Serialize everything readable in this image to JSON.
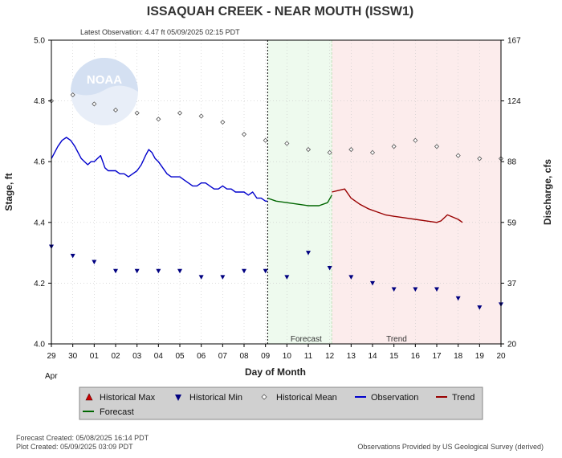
{
  "chart_data": {
    "type": "line",
    "title": "ISSAQUAH CREEK - NEAR MOUTH  (ISSW1)",
    "subtitle": "Latest Observation: 4.47 ft 05/09/2025 02:15 PDT",
    "xlabel": "Day of Month",
    "month_label": "Apr",
    "ylabel": "Stage, ft",
    "y2label": "Discharge, cfs",
    "ylim": [
      4.0,
      5.0
    ],
    "yticks": [
      "4.0",
      "4.2",
      "4.4",
      "4.6",
      "4.8",
      "5.0"
    ],
    "y2ticks": [
      "20",
      "37",
      "59",
      "88",
      "124",
      "167"
    ],
    "x_tick_labels": [
      "29",
      "30",
      "01",
      "02",
      "03",
      "04",
      "05",
      "06",
      "07",
      "08",
      "09",
      "10",
      "11",
      "12",
      "13",
      "14",
      "15",
      "16",
      "17",
      "18",
      "19",
      "20"
    ],
    "forecast_label": "Forecast",
    "trend_label": "Trend",
    "forecast_start_day": 10.1,
    "forecast_end_day": 13.1,
    "logo_text": "NOAA",
    "colors": {
      "observation": "#0000cc",
      "forecast": "#006600",
      "trend": "#990000",
      "historical_max": "#cc0000",
      "historical_min": "#000080",
      "historical_mean": "#555555",
      "forecast_zone": "#eefaee",
      "trend_zone": "#fcecec"
    },
    "series": [
      {
        "name": "Historical Min",
        "marker": "triangle-down",
        "x": [
          0,
          1,
          2,
          3,
          4,
          5,
          6,
          7,
          8,
          9,
          10,
          11,
          12,
          13,
          14,
          15,
          16,
          17,
          18,
          19,
          20,
          21
        ],
        "values": [
          4.32,
          4.29,
          4.27,
          4.24,
          4.24,
          4.24,
          4.24,
          4.22,
          4.22,
          4.24,
          4.24,
          4.22,
          4.3,
          4.25,
          4.22,
          4.2,
          4.18,
          4.18,
          4.18,
          4.15,
          4.12,
          4.13
        ]
      },
      {
        "name": "Historical Mean",
        "marker": "diamond",
        "x": [
          0,
          1,
          2,
          3,
          4,
          5,
          6,
          7,
          8,
          9,
          10,
          11,
          12,
          13,
          14,
          15,
          16,
          17,
          18,
          19,
          20,
          21
        ],
        "values": [
          4.8,
          4.82,
          4.79,
          4.77,
          4.76,
          4.74,
          4.76,
          4.75,
          4.73,
          4.69,
          4.67,
          4.66,
          4.64,
          4.63,
          4.64,
          4.63,
          4.65,
          4.67,
          4.65,
          4.62,
          4.61,
          4.61
        ]
      },
      {
        "name": "Observation",
        "x": [
          0,
          0.15,
          0.3,
          0.5,
          0.7,
          0.9,
          1.0,
          1.1,
          1.25,
          1.4,
          1.55,
          1.7,
          1.85,
          2.0,
          2.15,
          2.3,
          2.4,
          2.5,
          2.65,
          2.8,
          3.0,
          3.2,
          3.4,
          3.6,
          3.8,
          4.0,
          4.2,
          4.4,
          4.55,
          4.7,
          4.85,
          5.0,
          5.2,
          5.4,
          5.6,
          5.8,
          6.0,
          6.2,
          6.4,
          6.6,
          6.8,
          7.0,
          7.2,
          7.4,
          7.6,
          7.8,
          8.0,
          8.2,
          8.4,
          8.6,
          8.8,
          9.0,
          9.2,
          9.4,
          9.6,
          9.8,
          10.0,
          10.1
        ],
        "values": [
          4.61,
          4.63,
          4.65,
          4.67,
          4.68,
          4.67,
          4.66,
          4.65,
          4.63,
          4.61,
          4.6,
          4.59,
          4.6,
          4.6,
          4.61,
          4.62,
          4.6,
          4.58,
          4.57,
          4.57,
          4.57,
          4.56,
          4.56,
          4.55,
          4.56,
          4.57,
          4.59,
          4.62,
          4.64,
          4.63,
          4.61,
          4.6,
          4.58,
          4.56,
          4.55,
          4.55,
          4.55,
          4.54,
          4.53,
          4.52,
          4.52,
          4.53,
          4.53,
          4.52,
          4.51,
          4.51,
          4.52,
          4.51,
          4.51,
          4.5,
          4.5,
          4.5,
          4.49,
          4.5,
          4.48,
          4.48,
          4.47,
          4.47
        ]
      },
      {
        "name": "Forecast",
        "x": [
          10.1,
          10.5,
          11.0,
          11.5,
          12.0,
          12.5,
          12.9,
          13.1
        ],
        "values": [
          4.48,
          4.47,
          4.465,
          4.46,
          4.455,
          4.455,
          4.465,
          4.49
        ]
      },
      {
        "name": "Trend",
        "x": [
          13.1,
          13.4,
          13.7,
          14.0,
          14.4,
          14.8,
          15.2,
          15.6,
          16.0,
          16.5,
          17.0,
          17.5,
          18.0,
          18.2,
          18.5,
          19.0,
          19.2
        ],
        "values": [
          4.5,
          4.505,
          4.51,
          4.48,
          4.46,
          4.445,
          4.435,
          4.425,
          4.42,
          4.415,
          4.41,
          4.405,
          4.4,
          4.405,
          4.425,
          4.41,
          4.4
        ]
      }
    ],
    "legend": {
      "placement": "bottom",
      "items": [
        "Historical Max",
        "Historical Min",
        "Historical Mean",
        "Observation",
        "Trend",
        "Forecast"
      ]
    },
    "footer_left_1": "Forecast Created: 05/08/2025 16:14 PDT",
    "footer_left_2": "Plot Created: 05/09/2025 03:09 PDT",
    "footer_right": "Observations Provided by US Geological Survey (derived)"
  }
}
